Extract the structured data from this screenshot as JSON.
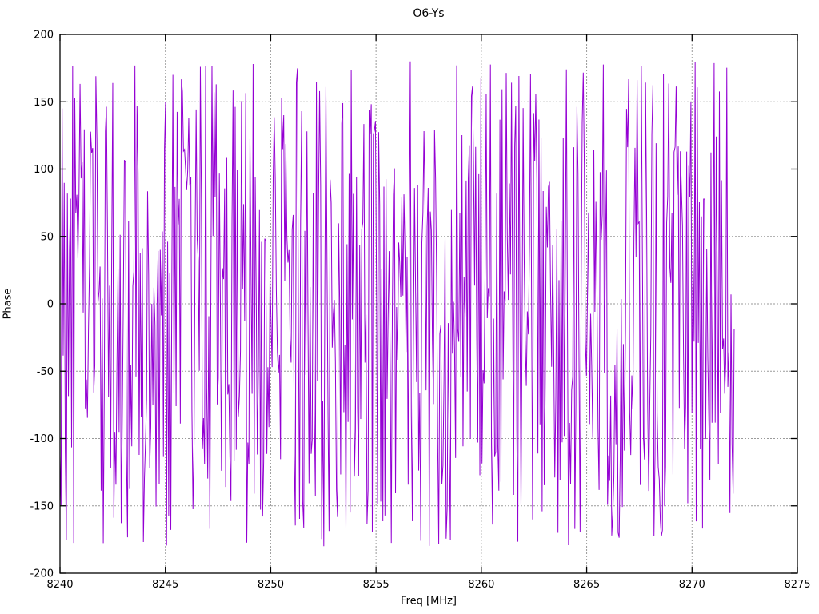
{
  "chart_data": {
    "type": "line",
    "title": "O6-Ys",
    "xlabel": "Freq [MHz]",
    "ylabel": "Phase",
    "xlim": [
      8240,
      8275
    ],
    "ylim": [
      -200,
      200
    ],
    "x_ticks": [
      8240,
      8245,
      8250,
      8255,
      8260,
      8265,
      8270,
      8275
    ],
    "y_ticks": [
      -200,
      -150,
      -100,
      -50,
      0,
      50,
      100,
      150,
      200
    ],
    "grid": {
      "enabled": true,
      "color": "#9a9a9a",
      "dash": "2,2"
    },
    "legend": {
      "visible": false
    },
    "series": [
      {
        "name": "O6-Ys",
        "color": "#9400D3",
        "style": "lines",
        "description": "wrapped interferometric phase noise, uniformly distributed",
        "x_start": 8240,
        "x_end": 8272,
        "n_points": 640,
        "y_min": -180,
        "y_max": 180,
        "seed": 911
      }
    ],
    "border_color": "#000000",
    "tick_length": 8
  }
}
